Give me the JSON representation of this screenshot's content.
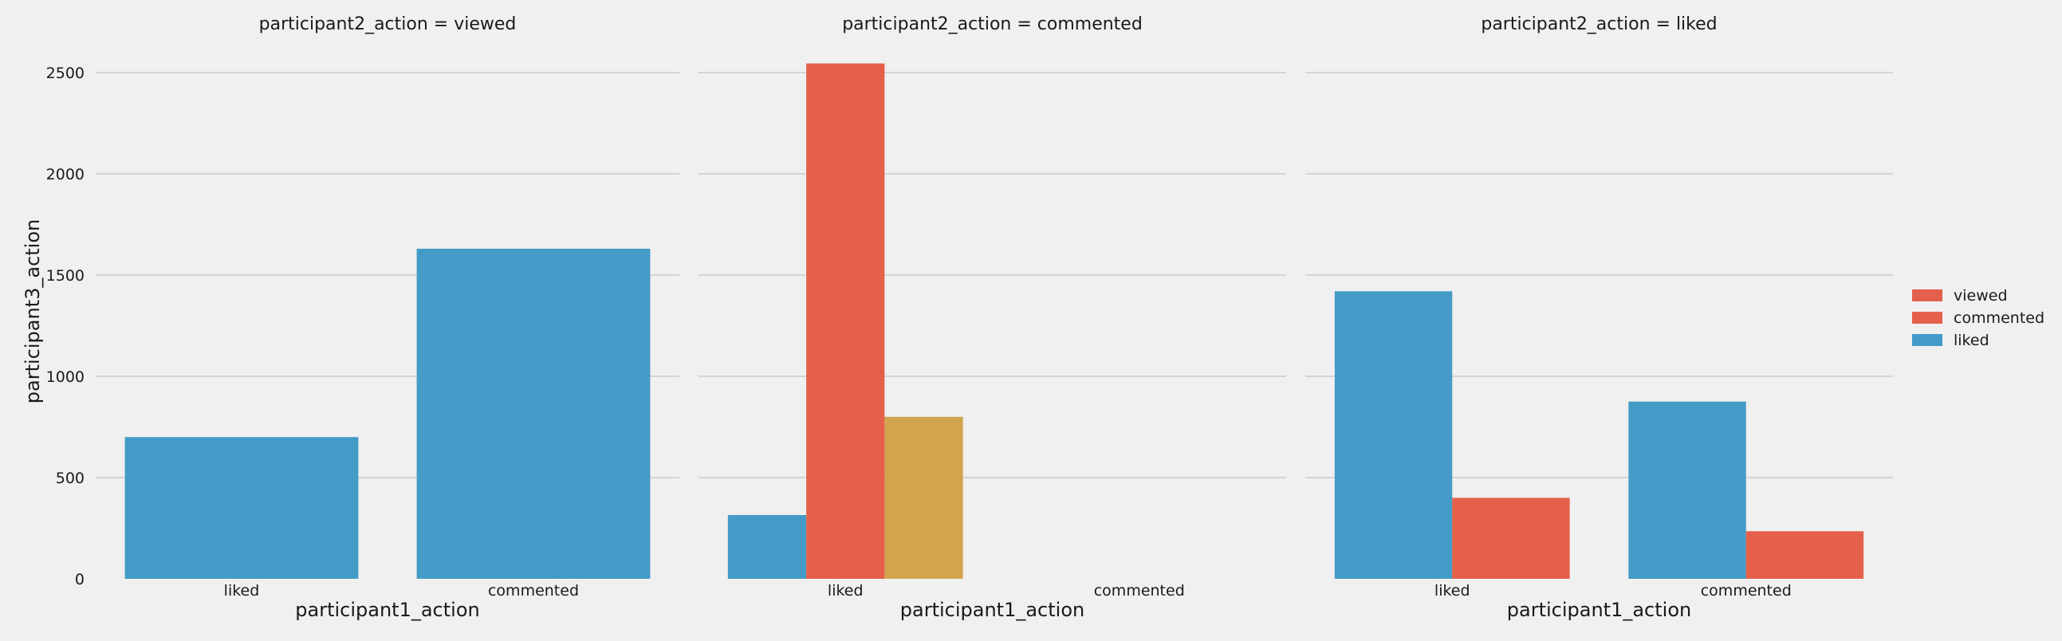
{
  "chart_data": {
    "type": "bar",
    "xlabel": "participant1_action",
    "ylabel": "participant3_action",
    "ylim": [
      0,
      2600
    ],
    "yticks": [
      0,
      500,
      1000,
      1500,
      2000,
      2500
    ],
    "grid": true,
    "legend_position": "right",
    "legend": [
      {
        "label": "viewed",
        "color": "#e5604a"
      },
      {
        "label": "commented",
        "color": "#e5604a"
      },
      {
        "label": "liked",
        "color": "#449bc8"
      }
    ],
    "panels": [
      {
        "title": "participant2_action = viewed",
        "categories": [
          "liked",
          "commented"
        ],
        "series": [
          {
            "color": "#449bc8",
            "values": [
              700,
              1630
            ]
          }
        ]
      },
      {
        "title": "participant2_action = commented",
        "categories": [
          "liked",
          "commented"
        ],
        "series": [
          {
            "color": "#449bc8",
            "values": [
              315,
              null
            ]
          },
          {
            "color": "#e5604a",
            "values": [
              2545,
              null
            ]
          },
          {
            "color": "#d1a44d",
            "values": [
              800,
              null
            ]
          }
        ]
      },
      {
        "title": "participant2_action = liked",
        "categories": [
          "liked",
          "commented"
        ],
        "series": [
          {
            "color": "#449bc8",
            "values": [
              1420,
              875
            ]
          },
          {
            "color": "#e5604a",
            "values": [
              400,
              235
            ]
          }
        ]
      }
    ]
  }
}
